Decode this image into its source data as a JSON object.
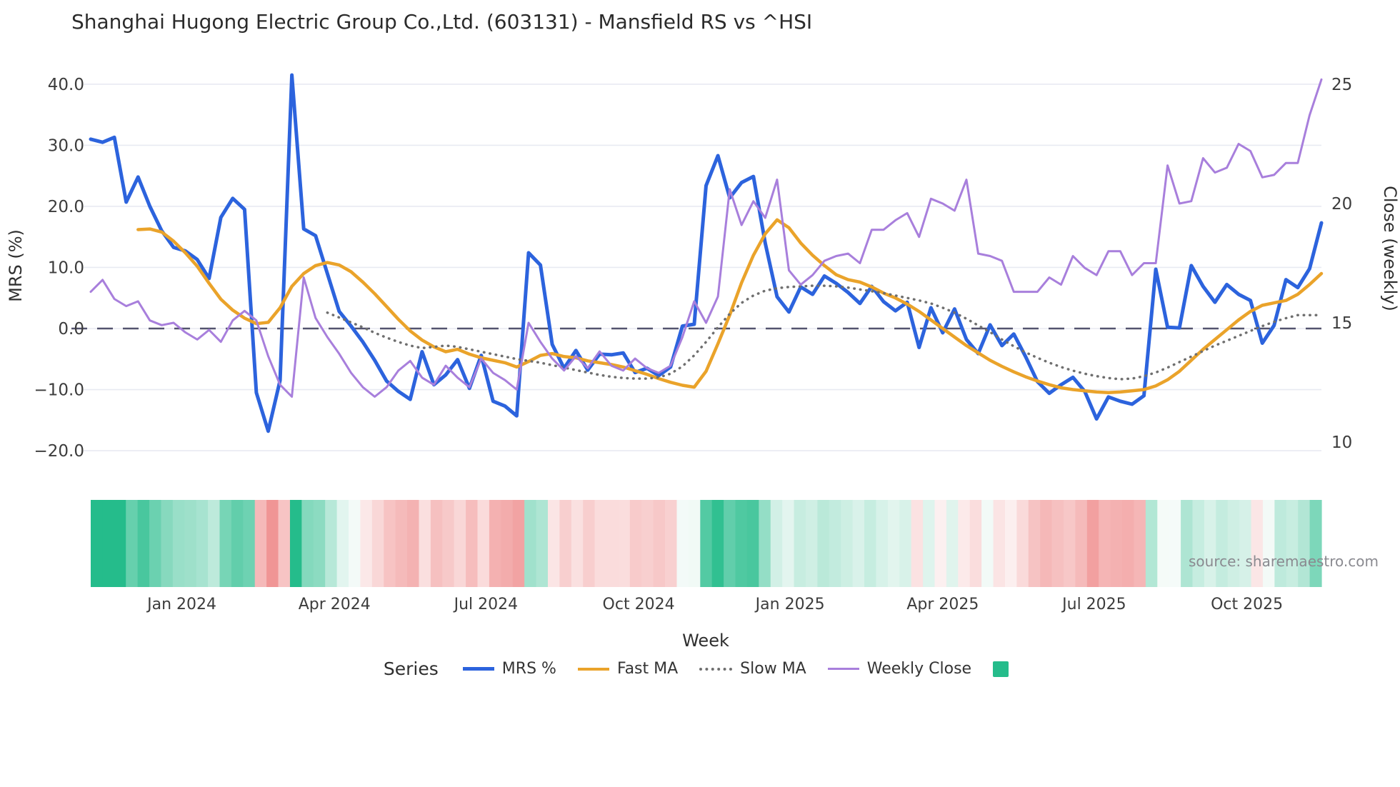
{
  "title": "Shanghai Hugong Electric Group Co.,Ltd. (603131) - Mansfield RS vs ^HSI",
  "axes": {
    "y_left_label": "MRS (%)",
    "y_right_label": "Close (weekly)",
    "x_label": "Week"
  },
  "source_note": "source: sharemaestro.com",
  "colors": {
    "mrs": "#2c63dd",
    "fast_ma": "#eaa32a",
    "slow_ma": "#6f6f6f",
    "weekly_close": "#a87fdc",
    "zero_line": "#53536e",
    "grid": "#e8eaf2",
    "heat_green": "#25bc8b",
    "heat_red": "#ee8383",
    "tick_text": "#3c3c3c",
    "source_text": "#8a8a90"
  },
  "legend": {
    "title": "Series",
    "items": [
      {
        "label": "MRS %",
        "color": "#2c63dd",
        "type": "line",
        "weight": 5
      },
      {
        "label": "Fast MA",
        "color": "#eaa32a",
        "type": "line",
        "weight": 4
      },
      {
        "label": "Slow MA",
        "color": "#6f6f6f",
        "type": "dotted",
        "weight": 4
      },
      {
        "label": "Weekly Close",
        "color": "#a87fdc",
        "type": "line",
        "weight": 3
      },
      {
        "label": "",
        "color": "#25bc8b",
        "type": "square"
      }
    ]
  },
  "chart_data": {
    "type": "line",
    "weeks": 105,
    "x_ticks": [
      {
        "label": "Jan 2024",
        "i": 7.7
      },
      {
        "label": "Apr 2024",
        "i": 20.6
      },
      {
        "label": "Jul 2024",
        "i": 33.4
      },
      {
        "label": "Oct 2024",
        "i": 46.3
      },
      {
        "label": "Jan 2025",
        "i": 59.1
      },
      {
        "label": "Apr 2025",
        "i": 72.0
      },
      {
        "label": "Jul 2025",
        "i": 84.8
      },
      {
        "label": "Oct 2025",
        "i": 97.7
      }
    ],
    "y_left": {
      "ticks": [
        40.0,
        30.0,
        20.0,
        10.0,
        0.0,
        -10.0,
        -20.0
      ],
      "lim": [
        -23,
        44
      ]
    },
    "y_right": {
      "ticks": [
        25,
        20,
        15,
        10
      ],
      "lim": [
        9.5,
        25.5
      ]
    },
    "zero_reference": 0,
    "series": [
      {
        "name": "MRS %",
        "axis": "left",
        "style": "solid",
        "color": "#2c63dd",
        "width": 5,
        "values": [
          31.0,
          30.5,
          31.3,
          20.7,
          24.8,
          20.0,
          16.0,
          13.3,
          12.7,
          11.3,
          8.2,
          18.2,
          21.3,
          19.5,
          -10.5,
          -16.8,
          -8.5,
          41.5,
          16.3,
          15.2,
          9.0,
          2.8,
          0.4,
          -2.2,
          -5.2,
          -8.6,
          -10.3,
          -11.6,
          -3.8,
          -9.2,
          -7.6,
          -5.1,
          -9.8,
          -4.4,
          -11.9,
          -12.7,
          -14.3,
          12.4,
          10.4,
          -2.6,
          -6.5,
          -3.6,
          -6.8,
          -4.2,
          -4.3,
          -4.0,
          -7.2,
          -6.5,
          -7.7,
          -6.3,
          0.4,
          0.7,
          23.4,
          28.3,
          21.4,
          23.9,
          24.9,
          14.0,
          5.2,
          2.7,
          6.8,
          5.6,
          8.6,
          7.4,
          5.9,
          4.1,
          6.9,
          4.4,
          2.9,
          4.3,
          -3.1,
          3.4,
          -0.7,
          3.2,
          -1.8,
          -4.1,
          0.6,
          -2.8,
          -0.9,
          -4.6,
          -8.7,
          -10.6,
          -9.2,
          -8.0,
          -10.3,
          -14.8,
          -11.2,
          -11.9,
          -12.4,
          -11.0,
          9.7,
          0.2,
          0.1,
          10.3,
          6.9,
          4.3,
          7.2,
          5.6,
          4.6,
          -2.4,
          0.5,
          8.0,
          6.7,
          9.8,
          17.3
        ]
      },
      {
        "name": "Fast MA",
        "axis": "left",
        "style": "solid",
        "color": "#eaa32a",
        "width": 4.5,
        "values": [
          null,
          null,
          null,
          null,
          16.2,
          16.3,
          15.8,
          14.3,
          12.4,
          10.2,
          7.4,
          4.8,
          3.0,
          1.7,
          0.8,
          1.0,
          3.4,
          6.9,
          9.0,
          10.3,
          10.8,
          10.4,
          9.3,
          7.6,
          5.7,
          3.6,
          1.5,
          -0.4,
          -1.9,
          -3.0,
          -3.8,
          -3.4,
          -4.2,
          -4.8,
          -5.2,
          -5.6,
          -6.3,
          -5.4,
          -4.4,
          -4.1,
          -4.6,
          -4.8,
          -5.3,
          -5.6,
          -5.9,
          -6.3,
          -6.9,
          -7.5,
          -8.2,
          -8.8,
          -9.3,
          -9.6,
          -7.0,
          -2.5,
          2.2,
          7.5,
          12.0,
          15.5,
          17.8,
          16.5,
          14.0,
          12.0,
          10.3,
          8.8,
          8.0,
          7.6,
          6.8,
          5.8,
          5.0,
          4.0,
          2.8,
          1.4,
          0.0,
          -1.4,
          -2.8,
          -4.0,
          -5.2,
          -6.2,
          -7.1,
          -7.9,
          -8.6,
          -9.2,
          -9.7,
          -10.0,
          -10.2,
          -10.4,
          -10.5,
          -10.4,
          -10.2,
          -10.0,
          -9.4,
          -8.4,
          -7.0,
          -5.2,
          -3.4,
          -1.8,
          -0.2,
          1.4,
          2.8,
          3.8,
          4.2,
          4.6,
          5.6,
          7.2,
          9.0
        ]
      },
      {
        "name": "Slow MA",
        "axis": "left",
        "style": "dotted",
        "color": "#6f6f6f",
        "width": 3.5,
        "values": [
          null,
          null,
          null,
          null,
          null,
          null,
          null,
          null,
          null,
          null,
          null,
          null,
          null,
          null,
          null,
          null,
          null,
          null,
          null,
          null,
          2.6,
          1.8,
          1.0,
          0.2,
          -0.7,
          -1.5,
          -2.2,
          -2.8,
          -3.2,
          -3.0,
          -2.8,
          -3.0,
          -3.4,
          -3.8,
          -4.2,
          -4.6,
          -5.0,
          -5.3,
          -5.6,
          -6.0,
          -6.4,
          -6.8,
          -7.2,
          -7.6,
          -7.9,
          -8.1,
          -8.2,
          -8.2,
          -8.0,
          -7.4,
          -6.2,
          -4.4,
          -2.2,
          0.2,
          2.4,
          4.2,
          5.4,
          6.2,
          6.6,
          6.8,
          6.9,
          7.0,
          7.0,
          6.9,
          6.7,
          6.4,
          6.1,
          5.8,
          5.4,
          5.0,
          4.6,
          4.1,
          3.4,
          2.6,
          1.6,
          0.5,
          -0.6,
          -1.8,
          -2.9,
          -3.9,
          -4.8,
          -5.6,
          -6.3,
          -6.9,
          -7.4,
          -7.8,
          -8.1,
          -8.3,
          -8.2,
          -7.8,
          -7.2,
          -6.4,
          -5.5,
          -4.6,
          -3.7,
          -2.8,
          -2.0,
          -1.2,
          -0.4,
          0.4,
          1.1,
          1.7,
          2.2,
          2.2,
          2.2
        ]
      },
      {
        "name": "Weekly Close",
        "axis": "right",
        "style": "solid",
        "color": "#a87fdc",
        "width": 3,
        "values": [
          16.3,
          16.8,
          16.0,
          15.7,
          15.9,
          15.1,
          14.9,
          15.0,
          14.6,
          14.3,
          14.7,
          14.2,
          15.1,
          15.5,
          15.1,
          13.6,
          12.4,
          11.9,
          16.9,
          15.2,
          14.4,
          13.7,
          12.9,
          12.3,
          11.9,
          12.3,
          13.0,
          13.4,
          12.7,
          12.4,
          13.2,
          12.7,
          12.3,
          13.5,
          12.9,
          12.6,
          12.2,
          15.0,
          14.2,
          13.5,
          13.0,
          13.6,
          13.1,
          13.8,
          13.2,
          13.0,
          13.5,
          13.1,
          12.9,
          13.2,
          14.4,
          15.9,
          15.0,
          16.1,
          20.6,
          19.1,
          20.1,
          19.4,
          21.0,
          17.2,
          16.6,
          17.0,
          17.6,
          17.8,
          17.9,
          17.5,
          18.9,
          18.9,
          19.3,
          19.6,
          18.6,
          20.2,
          20.0,
          19.7,
          21.0,
          17.9,
          17.8,
          17.6,
          16.3,
          16.3,
          16.3,
          16.9,
          16.6,
          17.8,
          17.3,
          17.0,
          18.0,
          18.0,
          17.0,
          17.5,
          17.5,
          21.6,
          20.0,
          20.1,
          21.9,
          21.3,
          21.5,
          22.5,
          22.2,
          21.1,
          21.2,
          21.7,
          21.7,
          23.7,
          25.2
        ]
      }
    ],
    "heatmap": {
      "source_series": "MRS %",
      "positive_color": "#25bc8b",
      "negative_color": "#ee8383",
      "positive_full_scale": 30,
      "negative_full_scale": 20
    }
  }
}
